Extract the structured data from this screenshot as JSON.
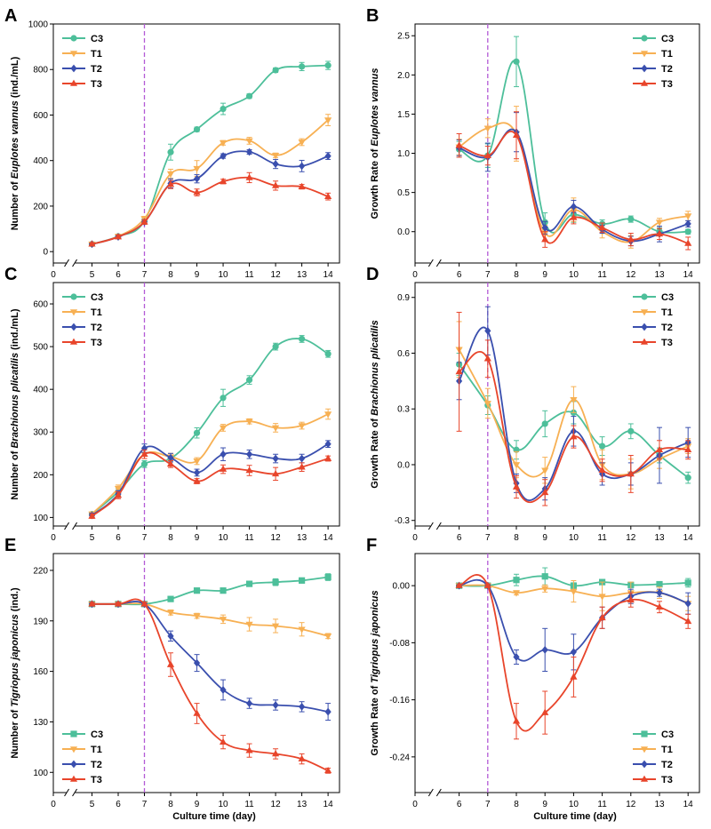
{
  "colors": {
    "C3": "#4dbf9a",
    "T1": "#f7b053",
    "T2": "#3a4fae",
    "T3": "#e8452b",
    "divider": "#b35ad6"
  },
  "x_label": "Culture time (day)",
  "chart_data": [
    {
      "panel": "A",
      "type": "line",
      "ylabel_parts": [
        "Number of ",
        "Euplotes vannus",
        " (ind./mL)"
      ],
      "ylim": [
        -50,
        1000
      ],
      "yticks": [
        0,
        200,
        400,
        600,
        800,
        1000
      ],
      "x_ticks": [
        0,
        5,
        6,
        7,
        8,
        9,
        10,
        11,
        12,
        13,
        14
      ],
      "divider_day": 7,
      "legend_position": "top-left",
      "x": [
        5,
        6,
        7,
        8,
        9,
        10,
        11,
        12,
        13,
        14
      ],
      "series": [
        {
          "name": "C3",
          "marker": "circle",
          "values": [
            33,
            67,
            135,
            437,
            537,
            627,
            683,
            797,
            813,
            818
          ],
          "errors": [
            5,
            8,
            10,
            35,
            10,
            25,
            10,
            10,
            18,
            18
          ]
        },
        {
          "name": "T1",
          "marker": "tri-down",
          "values": [
            33,
            67,
            145,
            342,
            365,
            478,
            487,
            423,
            481,
            578
          ],
          "errors": [
            5,
            8,
            10,
            20,
            35,
            10,
            15,
            10,
            15,
            25
          ]
        },
        {
          "name": "T2",
          "marker": "diamond",
          "values": [
            33,
            65,
            130,
            300,
            320,
            420,
            438,
            385,
            376,
            420
          ],
          "errors": [
            5,
            8,
            10,
            20,
            18,
            10,
            10,
            20,
            25,
            15
          ]
        },
        {
          "name": "T3",
          "marker": "tri-up",
          "values": [
            33,
            65,
            130,
            295,
            260,
            308,
            325,
            290,
            285,
            242
          ],
          "errors": [
            5,
            8,
            10,
            18,
            15,
            10,
            22,
            20,
            10,
            15
          ]
        }
      ]
    },
    {
      "panel": "B",
      "type": "line",
      "ylabel_parts": [
        "Growth Rate of ",
        "Euplotes vannus",
        ""
      ],
      "ylim": [
        -0.4,
        2.65
      ],
      "yticks": [
        0.0,
        0.5,
        1.0,
        1.5,
        2.0,
        2.5
      ],
      "x_ticks": [
        0,
        6,
        7,
        8,
        9,
        10,
        11,
        12,
        13,
        14
      ],
      "divider_day": 7,
      "legend_position": "top-right",
      "x": [
        6,
        7,
        8,
        9,
        10,
        11,
        12,
        13,
        14
      ],
      "series": [
        {
          "name": "C3",
          "marker": "circle",
          "values": [
            1.05,
            0.97,
            2.17,
            0.12,
            0.22,
            0.1,
            0.16,
            0.0,
            0.0
          ],
          "errors": [
            0.1,
            0.15,
            0.32,
            0.12,
            0.1,
            0.05,
            0.04,
            0.05,
            0.03
          ]
        },
        {
          "name": "T1",
          "marker": "tri-down",
          "values": [
            1.08,
            1.32,
            1.25,
            -0.02,
            0.28,
            0.0,
            -0.13,
            0.12,
            0.2
          ],
          "errors": [
            0.1,
            0.12,
            0.35,
            0.1,
            0.15,
            0.08,
            0.08,
            0.05,
            0.06
          ]
        },
        {
          "name": "T2",
          "marker": "diamond",
          "values": [
            1.07,
            0.95,
            1.27,
            0.05,
            0.32,
            0.03,
            -0.12,
            -0.03,
            0.1
          ],
          "errors": [
            0.1,
            0.18,
            0.25,
            0.08,
            0.08,
            0.05,
            0.06,
            0.1,
            0.04
          ]
        },
        {
          "name": "T3",
          "marker": "tri-up",
          "values": [
            1.1,
            0.97,
            1.23,
            -0.1,
            0.18,
            0.05,
            -0.1,
            -0.03,
            -0.15
          ],
          "errors": [
            0.15,
            0.12,
            0.3,
            0.1,
            0.08,
            0.06,
            0.08,
            0.07,
            0.08
          ]
        }
      ]
    },
    {
      "panel": "C",
      "type": "line",
      "ylabel_parts": [
        "Number of ",
        "Brachionus plicatilis",
        " (ind./mL)"
      ],
      "ylim": [
        80,
        650
      ],
      "yticks": [
        100,
        200,
        300,
        400,
        500,
        600
      ],
      "x_ticks": [
        0,
        5,
        6,
        7,
        8,
        9,
        10,
        11,
        12,
        13,
        14
      ],
      "divider_day": 7,
      "legend_position": "top-left",
      "x": [
        5,
        6,
        7,
        8,
        9,
        10,
        11,
        12,
        13,
        14
      ],
      "series": [
        {
          "name": "C3",
          "marker": "circle",
          "values": [
            108,
            160,
            225,
            238,
            298,
            380,
            422,
            500,
            518,
            483
          ],
          "errors": [
            5,
            8,
            8,
            8,
            12,
            20,
            10,
            8,
            8,
            8
          ]
        },
        {
          "name": "T1",
          "marker": "tri-down",
          "values": [
            108,
            168,
            248,
            242,
            232,
            310,
            325,
            310,
            315,
            342
          ],
          "errors": [
            5,
            8,
            10,
            8,
            8,
            8,
            6,
            10,
            8,
            12
          ]
        },
        {
          "name": "T2",
          "marker": "diamond",
          "values": [
            105,
            155,
            262,
            240,
            205,
            248,
            248,
            238,
            238,
            272
          ],
          "errors": [
            5,
            8,
            10,
            10,
            8,
            15,
            10,
            10,
            10,
            8
          ]
        },
        {
          "name": "T3",
          "marker": "tri-up",
          "values": [
            103,
            152,
            248,
            225,
            185,
            213,
            210,
            202,
            218,
            238
          ],
          "errors": [
            5,
            8,
            10,
            8,
            6,
            10,
            12,
            15,
            10,
            6
          ]
        }
      ]
    },
    {
      "panel": "D",
      "type": "line",
      "ylabel_parts": [
        "Growth Rate of ",
        "Brachionus plicatilis",
        ""
      ],
      "ylim": [
        -0.33,
        0.98
      ],
      "yticks": [
        -0.3,
        0.0,
        0.3,
        0.6,
        0.9
      ],
      "x_ticks": [
        0,
        6,
        7,
        8,
        9,
        10,
        11,
        12,
        13,
        14
      ],
      "divider_day": 7,
      "legend_position": "top-right",
      "x": [
        6,
        7,
        8,
        9,
        10,
        11,
        12,
        13,
        14
      ],
      "series": [
        {
          "name": "C3",
          "marker": "circle",
          "values": [
            0.54,
            0.32,
            0.08,
            0.22,
            0.28,
            0.1,
            0.18,
            0.05,
            -0.07
          ],
          "errors": [
            0.06,
            0.05,
            0.05,
            0.07,
            0.06,
            0.05,
            0.04,
            0.04,
            0.03
          ]
        },
        {
          "name": "T1",
          "marker": "tri-down",
          "values": [
            0.62,
            0.33,
            0.0,
            -0.03,
            0.35,
            0.0,
            -0.05,
            0.03,
            0.1
          ],
          "errors": [
            0.15,
            0.08,
            0.07,
            0.07,
            0.07,
            0.08,
            0.08,
            0.05,
            0.04
          ]
        },
        {
          "name": "T2",
          "marker": "diamond",
          "values": [
            0.45,
            0.72,
            -0.1,
            -0.13,
            0.18,
            -0.05,
            -0.05,
            0.05,
            0.12
          ],
          "errors": [
            0.1,
            0.13,
            0.05,
            0.06,
            0.08,
            0.06,
            0.06,
            0.15,
            0.08
          ]
        },
        {
          "name": "T3",
          "marker": "tri-up",
          "values": [
            0.5,
            0.57,
            -0.12,
            -0.15,
            0.15,
            -0.03,
            -0.05,
            0.08,
            0.08
          ],
          "errors": [
            0.32,
            0.1,
            0.06,
            0.07,
            0.06,
            0.06,
            0.1,
            0.05,
            0.05
          ]
        }
      ]
    },
    {
      "panel": "E",
      "type": "line",
      "ylabel_parts": [
        "Number of ",
        "Tigriopus japonicus",
        " (ind.)"
      ],
      "ylim": [
        88,
        230
      ],
      "yticks": [
        100,
        130,
        160,
        190,
        220
      ],
      "x_ticks": [
        0,
        5,
        6,
        7,
        8,
        9,
        10,
        11,
        12,
        13,
        14
      ],
      "divider_day": 7,
      "legend_position": "bottom-left",
      "x": [
        5,
        6,
        7,
        8,
        9,
        10,
        11,
        12,
        13,
        14
      ],
      "series": [
        {
          "name": "C3",
          "marker": "square",
          "values": [
            200,
            200,
            200,
            203,
            208,
            208,
            212,
            213,
            214,
            216
          ],
          "errors": [
            1,
            1,
            1,
            1.5,
            1.5,
            1.5,
            1.5,
            2,
            1.5,
            2
          ]
        },
        {
          "name": "T1",
          "marker": "tri-down",
          "values": [
            200,
            200,
            200,
            195,
            193,
            191,
            188,
            187,
            185,
            181
          ],
          "errors": [
            1,
            1,
            1,
            1.5,
            1.5,
            2.5,
            4,
            4,
            4,
            1.5
          ]
        },
        {
          "name": "T2",
          "marker": "diamond",
          "values": [
            200,
            200,
            200,
            181,
            165,
            149,
            141,
            140,
            139,
            136
          ],
          "errors": [
            1,
            1,
            1,
            3,
            5,
            6,
            3,
            3,
            3,
            5
          ]
        },
        {
          "name": "T3",
          "marker": "tri-up",
          "values": [
            200,
            200,
            200,
            164,
            135,
            118,
            113,
            111,
            108,
            101
          ],
          "errors": [
            1,
            1,
            1,
            7,
            6,
            4,
            4,
            3,
            3,
            1.5
          ]
        }
      ]
    },
    {
      "panel": "F",
      "type": "line",
      "ylabel_parts": [
        "Growth Rate of ",
        "Tigriopus japonicus",
        ""
      ],
      "ylim": [
        -0.29,
        0.045
      ],
      "yticks": [
        -0.24,
        -0.16,
        -0.08,
        0.0
      ],
      "x_ticks": [
        0,
        6,
        7,
        8,
        9,
        10,
        11,
        12,
        13,
        14
      ],
      "divider_day": 7,
      "legend_position": "bottom-right",
      "x": [
        6,
        7,
        8,
        9,
        10,
        11,
        12,
        13,
        14
      ],
      "series": [
        {
          "name": "C3",
          "marker": "square",
          "values": [
            0.0,
            0.0,
            0.008,
            0.013,
            0.0,
            0.005,
            0.001,
            0.002,
            0.004
          ],
          "errors": [
            0.001,
            0.002,
            0.008,
            0.012,
            0.004,
            0.002,
            0.003,
            0.003,
            0.006
          ]
        },
        {
          "name": "T1",
          "marker": "tri-down",
          "values": [
            0.0,
            0.0,
            -0.01,
            -0.004,
            -0.008,
            -0.015,
            -0.01,
            -0.01,
            -0.025
          ],
          "errors": [
            0.001,
            0.002,
            0.003,
            0.005,
            0.015,
            0.02,
            0.015,
            0.008,
            0.01
          ]
        },
        {
          "name": "T2",
          "marker": "diamond",
          "values": [
            0.0,
            0.0,
            -0.1,
            -0.09,
            -0.093,
            -0.045,
            -0.015,
            -0.01,
            -0.025
          ],
          "errors": [
            0.001,
            0.002,
            0.01,
            0.03,
            0.025,
            0.015,
            0.01,
            0.005,
            0.015
          ]
        },
        {
          "name": "T3",
          "marker": "tri-up",
          "values": [
            0.0,
            0.0,
            -0.19,
            -0.178,
            -0.128,
            -0.045,
            -0.02,
            -0.03,
            -0.05
          ],
          "errors": [
            0.001,
            0.002,
            0.025,
            0.03,
            0.028,
            0.015,
            0.01,
            0.008,
            0.01
          ]
        }
      ]
    }
  ]
}
